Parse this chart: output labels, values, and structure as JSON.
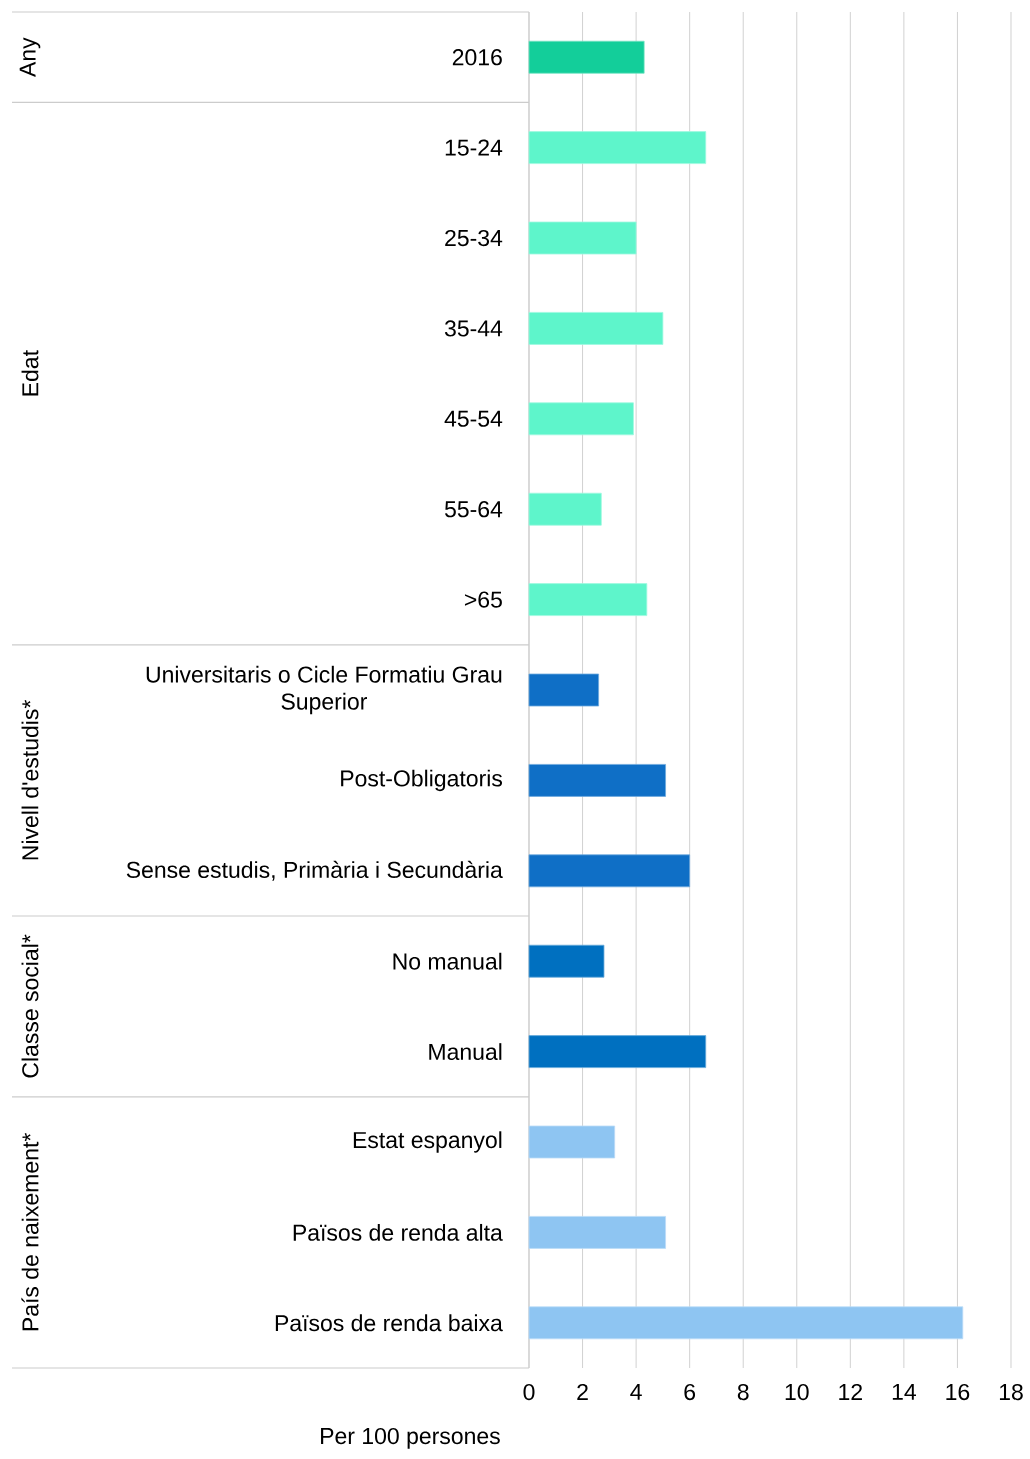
{
  "chart_data": {
    "type": "bar",
    "orientation": "horizontal",
    "xlabel": "Per 100 persones",
    "categories": [
      "2016",
      "15-24",
      "25-34",
      "35-44",
      "45-54",
      "55-64",
      ">65",
      "Universitaris o Cicle Formatiu Grau Superior",
      "Post-Obligatoris",
      "Sense estudis, Primària i Secundària",
      "No manual",
      "Manual",
      "Estat espanyol",
      "Països de renda alta",
      "Països de renda baixa"
    ],
    "values": [
      4.3,
      6.6,
      4.0,
      5.0,
      3.9,
      2.7,
      4.4,
      2.6,
      5.1,
      6.0,
      2.8,
      6.6,
      3.2,
      5.1,
      16.2
    ],
    "colors": [
      "#13ce9a",
      "#5ef5cb",
      "#5ef5cb",
      "#5ef5cb",
      "#5ef5cb",
      "#5ef5cb",
      "#5ef5cb",
      "#0f6fc6",
      "#0f6fc6",
      "#0f6fc6",
      "#0070c0",
      "#0070c0",
      "#8ec5f2",
      "#8ec5f2",
      "#8ec5f2"
    ],
    "xlim": [
      0,
      18
    ],
    "xticks": [
      0,
      2,
      4,
      6,
      8,
      10,
      12,
      14,
      16,
      18
    ],
    "grid": "x",
    "annotations": [
      "Any",
      "Edat",
      "Nivell d'estudis*",
      "Classe social*",
      "País de naixement*"
    ]
  }
}
